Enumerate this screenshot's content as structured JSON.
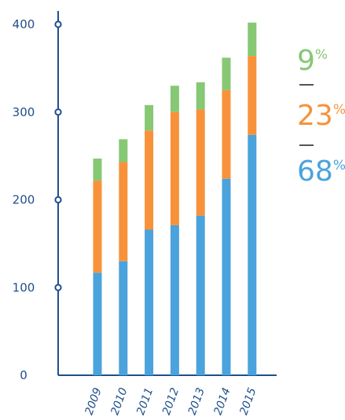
{
  "chart_data": {
    "type": "bar",
    "stacked": true,
    "categories": [
      "2009",
      "2010",
      "2011",
      "2012",
      "2013",
      "2014",
      "2015"
    ],
    "series": [
      {
        "values": [
          117,
          130,
          166,
          171,
          182,
          224,
          274
        ],
        "color": "#4aa3dc"
      },
      {
        "values": [
          105,
          113,
          113,
          129,
          121,
          101,
          90
        ],
        "color": "#f7923a"
      },
      {
        "values": [
          25,
          26,
          29,
          30,
          31,
          37,
          38
        ],
        "color": "#86c874"
      }
    ],
    "ylim": [
      0,
      400
    ],
    "yticks": [
      "0",
      "100",
      "200",
      "300",
      "400"
    ],
    "axis_color": "#1f4f8a"
  },
  "legend": {
    "items": [
      {
        "value": "9",
        "unit": "%",
        "color": "#86c874"
      },
      {
        "value": "23",
        "unit": "%",
        "color": "#f7923a"
      },
      {
        "value": "68",
        "unit": "%",
        "color": "#4aa3dc"
      }
    ]
  }
}
